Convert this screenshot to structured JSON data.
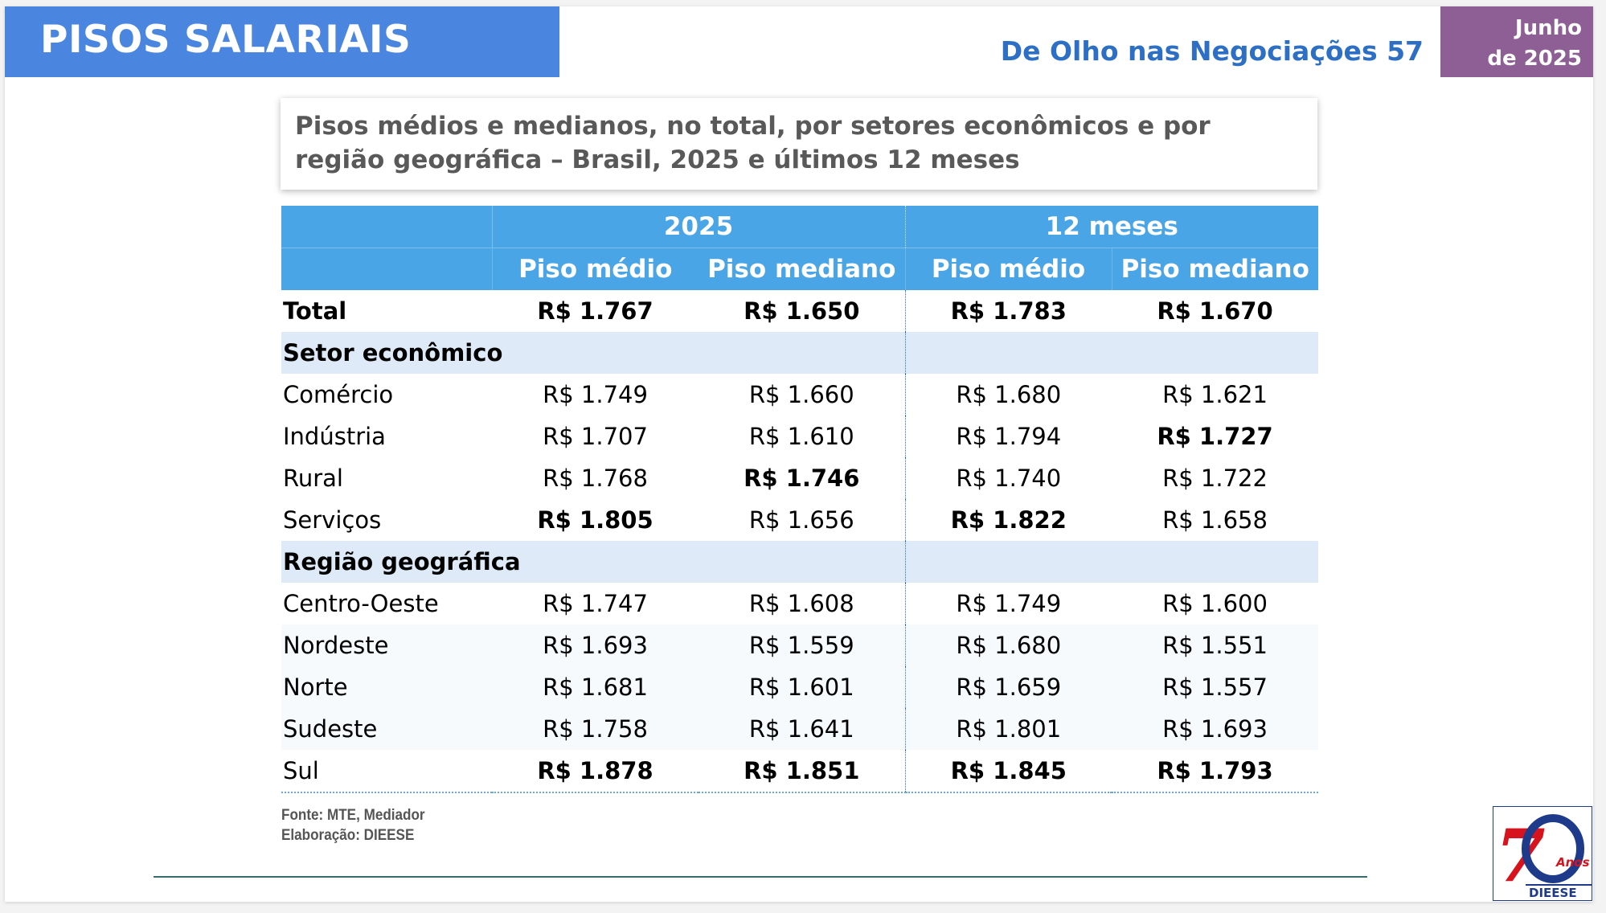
{
  "header": {
    "title": "PISOS SALARIAIS",
    "series": "De Olho nas Negociações 57",
    "date_line1": "Junho",
    "date_line2": "de 2025"
  },
  "subtitle": "Pisos médios e medianos, no total, por setores econômicos e por região geográfica – Brasil, 2025 e últimos 12 meses",
  "table": {
    "group_headers": [
      "2025",
      "12 meses"
    ],
    "sub_headers": [
      "Piso médio",
      "Piso mediano",
      "Piso médio",
      "Piso mediano"
    ],
    "total": {
      "label": "Total",
      "values": [
        "R$ 1.767",
        "R$ 1.650",
        "R$ 1.783",
        "R$ 1.670"
      ]
    },
    "sector_header": "Setor econômico",
    "sectors": [
      {
        "label": "Comércio",
        "values": [
          "R$ 1.749",
          "R$ 1.660",
          "R$ 1.680",
          "R$ 1.621"
        ]
      },
      {
        "label": "Indústria",
        "values": [
          "R$ 1.707",
          "R$ 1.610",
          "R$ 1.794",
          "R$ 1.727"
        ]
      },
      {
        "label": "Rural",
        "values": [
          "R$ 1.768",
          "R$ 1.746",
          "R$ 1.740",
          "R$ 1.722"
        ]
      },
      {
        "label": "Serviços",
        "values": [
          "R$ 1.805",
          "R$ 1.656",
          "R$ 1.822",
          "R$ 1.658"
        ]
      }
    ],
    "region_header": "Região geográfica",
    "regions": [
      {
        "label": "Centro-Oeste",
        "values": [
          "R$ 1.747",
          "R$ 1.608",
          "R$ 1.749",
          "R$ 1.600"
        ]
      },
      {
        "label": "Nordeste",
        "values": [
          "R$ 1.693",
          "R$ 1.559",
          "R$ 1.680",
          "R$ 1.551"
        ]
      },
      {
        "label": "Norte",
        "values": [
          "R$ 1.681",
          "R$ 1.601",
          "R$ 1.659",
          "R$ 1.557"
        ]
      },
      {
        "label": "Sudeste",
        "values": [
          "R$ 1.758",
          "R$ 1.641",
          "R$ 1.801",
          "R$ 1.693"
        ]
      },
      {
        "label": "Sul",
        "values": [
          "R$ 1.878",
          "R$ 1.851",
          "R$ 1.845",
          "R$ 1.793"
        ]
      }
    ]
  },
  "source": {
    "line1": "Fonte: MTE, Mediador",
    "line2": "Elaboração: DIEESE"
  },
  "logo": {
    "numeral": "70",
    "anos": "Anos",
    "name": "DIEESE",
    "colors": {
      "red": "#d7141d",
      "blue": "#1e3a8a"
    }
  }
}
